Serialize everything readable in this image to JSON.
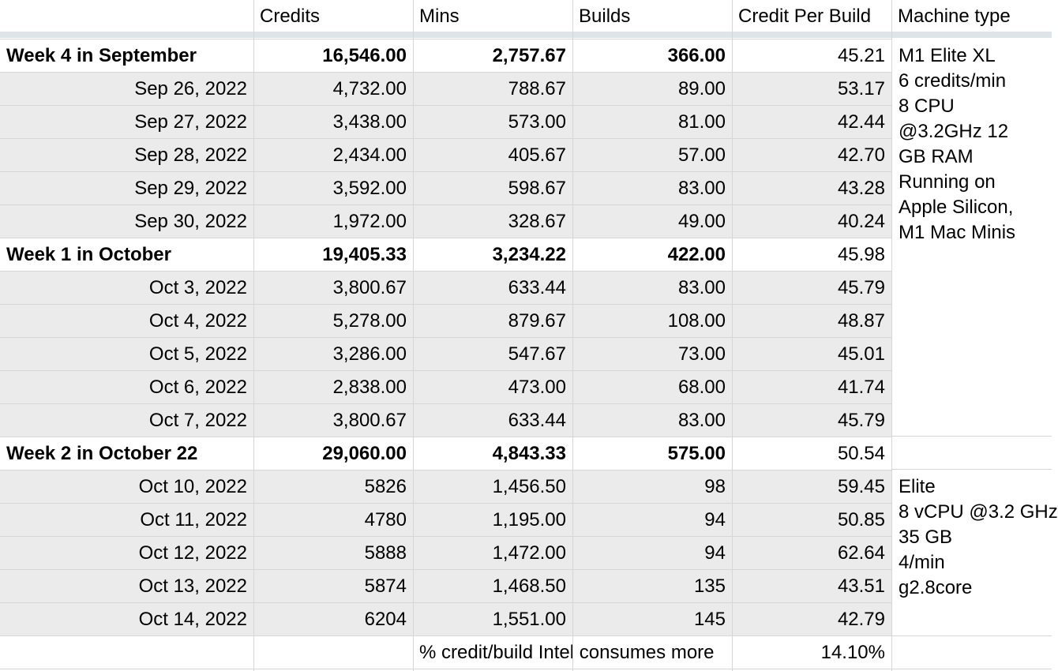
{
  "headers": [
    "",
    "Credits",
    "Mins",
    "Builds",
    "Credit Per Build",
    "Machine type"
  ],
  "rows": [
    {
      "label": "Week 4 in September",
      "credits": "16,546.00",
      "mins": "2,757.67",
      "builds": "366.00",
      "cpb": "45.21",
      "summary": true
    },
    {
      "label": "Sep 26, 2022",
      "credits": "4,732.00",
      "mins": "788.67",
      "builds": "89.00",
      "cpb": "53.17",
      "summary": false
    },
    {
      "label": "Sep 27, 2022",
      "credits": "3,438.00",
      "mins": "573.00",
      "builds": "81.00",
      "cpb": "42.44",
      "summary": false
    },
    {
      "label": "Sep 28, 2022",
      "credits": "2,434.00",
      "mins": "405.67",
      "builds": "57.00",
      "cpb": "42.70",
      "summary": false
    },
    {
      "label": "Sep 29, 2022",
      "credits": "3,592.00",
      "mins": "598.67",
      "builds": "83.00",
      "cpb": "43.28",
      "summary": false
    },
    {
      "label": "Sep 30, 2022",
      "credits": "1,972.00",
      "mins": "328.67",
      "builds": "49.00",
      "cpb": "40.24",
      "summary": false
    },
    {
      "label": "Week 1 in October",
      "credits": "19,405.33",
      "mins": "3,234.22",
      "builds": "422.00",
      "cpb": "45.98",
      "summary": true
    },
    {
      "label": "Oct 3, 2022",
      "credits": "3,800.67",
      "mins": "633.44",
      "builds": "83.00",
      "cpb": "45.79",
      "summary": false
    },
    {
      "label": "Oct 4, 2022",
      "credits": "5,278.00",
      "mins": "879.67",
      "builds": "108.00",
      "cpb": "48.87",
      "summary": false
    },
    {
      "label": "Oct 5, 2022",
      "credits": "3,286.00",
      "mins": "547.67",
      "builds": "73.00",
      "cpb": "45.01",
      "summary": false
    },
    {
      "label": "Oct 6, 2022",
      "credits": "2,838.00",
      "mins": "473.00",
      "builds": "68.00",
      "cpb": "41.74",
      "summary": false
    },
    {
      "label": "Oct 7, 2022",
      "credits": "3,800.67",
      "mins": "633.44",
      "builds": "83.00",
      "cpb": "45.79",
      "summary": false
    },
    {
      "label": "Week 2 in October 22",
      "credits": "29,060.00",
      "mins": "4,843.33",
      "builds": "575.00",
      "cpb": "50.54",
      "summary": true
    },
    {
      "label": "Oct 10, 2022",
      "credits": "5826",
      "mins": "1,456.50",
      "builds": "98",
      "cpb": "59.45",
      "summary": false
    },
    {
      "label": "Oct 11, 2022",
      "credits": "4780",
      "mins": "1,195.00",
      "builds": "94",
      "cpb": "50.85",
      "summary": false
    },
    {
      "label": "Oct 12, 2022",
      "credits": "5888",
      "mins": "1,472.00",
      "builds": "94",
      "cpb": "62.64",
      "summary": false
    },
    {
      "label": "Oct 13, 2022",
      "credits": "5874",
      "mins": "1,468.50",
      "builds": "135",
      "cpb": "43.51",
      "summary": false
    },
    {
      "label": "Oct 14, 2022",
      "credits": "6204",
      "mins": "1,551.00",
      "builds": "145",
      "cpb": "42.79",
      "summary": false
    }
  ],
  "footer": {
    "label": "% credit/build Intel consumes more",
    "value": "14.10%"
  },
  "machine_notes": {
    "m1": [
      "M1 Elite XL",
      "6 credits/min",
      "8 CPU",
      "@3.2GHz 12",
      "GB RAM",
      "Running on",
      "Apple Silicon,",
      "M1 Mac Minis"
    ],
    "intel": [
      "Elite",
      "8 vCPU @3.2 GHz",
      "35 GB",
      "4/min",
      "g2.8core"
    ]
  },
  "colors": {
    "gridline": "#d6d6d6",
    "row_fill": "#ebebeb",
    "freeze_bar": "#dfe3ea"
  }
}
